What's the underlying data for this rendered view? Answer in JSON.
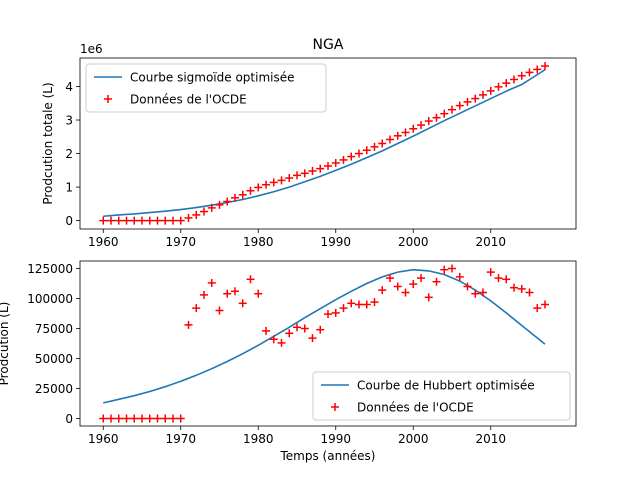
{
  "chart_data": [
    {
      "type": "line",
      "title": "NGA",
      "xlabel": "",
      "ylabel": "Prodcution totale (L)",
      "y_multiplier_label": "1e6",
      "xlim": [
        1957,
        2021
      ],
      "ylim": [
        -0.25,
        4.85
      ],
      "x_ticks": [
        1960,
        1970,
        1980,
        1990,
        2000,
        2010
      ],
      "y_ticks": [
        0,
        1,
        2,
        3,
        4
      ],
      "legend_position": "upper left",
      "legend": [
        {
          "label": "Courbe sigmoïde optimisée",
          "kind": "line"
        },
        {
          "label": "Données de l'OCDE",
          "kind": "marker"
        }
      ],
      "series": [
        {
          "name": "Courbe sigmoïde optimisée",
          "kind": "line",
          "color": "#1f77b4",
          "x": [
            1960,
            1962,
            1964,
            1966,
            1968,
            1970,
            1972,
            1974,
            1976,
            1978,
            1980,
            1982,
            1984,
            1986,
            1988,
            1990,
            1992,
            1994,
            1996,
            1998,
            2000,
            2002,
            2004,
            2006,
            2008,
            2010,
            2012,
            2014,
            2017
          ],
          "y": [
            0.13,
            0.17,
            0.2,
            0.24,
            0.28,
            0.33,
            0.39,
            0.46,
            0.54,
            0.63,
            0.74,
            0.86,
            1.0,
            1.16,
            1.32,
            1.5,
            1.68,
            1.88,
            2.08,
            2.3,
            2.52,
            2.75,
            2.98,
            3.2,
            3.42,
            3.64,
            3.86,
            4.06,
            4.5
          ]
        },
        {
          "name": "Données de l'OCDE",
          "kind": "marker",
          "color": "#ff0000",
          "x": [
            1960,
            1961,
            1962,
            1963,
            1964,
            1965,
            1966,
            1967,
            1968,
            1969,
            1970,
            1971,
            1972,
            1973,
            1974,
            1975,
            1976,
            1977,
            1978,
            1979,
            1980,
            1981,
            1982,
            1983,
            1984,
            1985,
            1986,
            1987,
            1988,
            1989,
            1990,
            1991,
            1992,
            1993,
            1994,
            1995,
            1996,
            1997,
            1998,
            1999,
            2000,
            2001,
            2002,
            2003,
            2004,
            2005,
            2006,
            2007,
            2008,
            2009,
            2010,
            2011,
            2012,
            2013,
            2014,
            2015,
            2016,
            2017
          ],
          "y": [
            0,
            0,
            0,
            0,
            0,
            0,
            0,
            0,
            0,
            0,
            0,
            0.08,
            0.17,
            0.27,
            0.38,
            0.47,
            0.57,
            0.68,
            0.77,
            0.89,
            0.99,
            1.07,
            1.14,
            1.2,
            1.27,
            1.35,
            1.41,
            1.48,
            1.55,
            1.63,
            1.72,
            1.81,
            1.91,
            2.0,
            2.1,
            2.2,
            2.3,
            2.42,
            2.53,
            2.63,
            2.74,
            2.85,
            2.97,
            3.07,
            3.19,
            3.31,
            3.43,
            3.54,
            3.64,
            3.75,
            3.87,
            3.99,
            4.1,
            4.21,
            4.32,
            4.42,
            4.51,
            4.61
          ]
        }
      ]
    },
    {
      "type": "line",
      "title": "",
      "xlabel": "Temps (années)",
      "ylabel": "Prodcution (L)",
      "xlim": [
        1957,
        2021
      ],
      "ylim": [
        -6250,
        131250
      ],
      "x_ticks": [
        1960,
        1970,
        1980,
        1990,
        2000,
        2010
      ],
      "y_ticks": [
        0,
        25000,
        50000,
        75000,
        100000,
        125000
      ],
      "legend_position": "lower right",
      "legend": [
        {
          "label": "Courbe de Hubbert optimisée",
          "kind": "line"
        },
        {
          "label": "Données de l'OCDE",
          "kind": "marker"
        }
      ],
      "series": [
        {
          "name": "Courbe de Hubbert optimisée",
          "kind": "line",
          "color": "#1f77b4",
          "x": [
            1960,
            1962,
            1964,
            1966,
            1968,
            1970,
            1972,
            1974,
            1976,
            1978,
            1980,
            1982,
            1984,
            1986,
            1988,
            1990,
            1992,
            1994,
            1996,
            1998,
            2000,
            2002,
            2004,
            2006,
            2008,
            2010,
            2012,
            2014,
            2017
          ],
          "y": [
            13000,
            16000,
            19000,
            22500,
            26500,
            31000,
            36000,
            41500,
            47500,
            54000,
            61000,
            68500,
            76000,
            84000,
            91500,
            99000,
            106000,
            112500,
            118000,
            122000,
            124000,
            123000,
            120000,
            114500,
            107000,
            98000,
            88000,
            77500,
            62000
          ]
        },
        {
          "name": "Données de l'OCDE",
          "kind": "marker",
          "color": "#ff0000",
          "x": [
            1960,
            1961,
            1962,
            1963,
            1964,
            1965,
            1966,
            1967,
            1968,
            1969,
            1970,
            1971,
            1972,
            1973,
            1974,
            1975,
            1976,
            1977,
            1978,
            1979,
            1980,
            1981,
            1982,
            1983,
            1984,
            1985,
            1986,
            1987,
            1988,
            1989,
            1990,
            1991,
            1992,
            1993,
            1994,
            1995,
            1996,
            1997,
            1998,
            1999,
            2000,
            2001,
            2002,
            2003,
            2004,
            2005,
            2006,
            2007,
            2008,
            2009,
            2010,
            2011,
            2012,
            2013,
            2014,
            2015,
            2016,
            2017
          ],
          "y": [
            0,
            0,
            0,
            0,
            0,
            0,
            0,
            0,
            0,
            0,
            0,
            78000,
            92000,
            103000,
            113000,
            90000,
            104000,
            106000,
            96000,
            116000,
            104000,
            73000,
            66000,
            63000,
            71000,
            76000,
            75000,
            67000,
            74000,
            87000,
            88000,
            92000,
            96000,
            95000,
            95000,
            97000,
            107000,
            117000,
            110000,
            105000,
            112000,
            117000,
            101000,
            114000,
            124000,
            125000,
            118000,
            110000,
            104000,
            105000,
            122000,
            117000,
            116000,
            109000,
            108000,
            105000,
            92000,
            95000
          ]
        }
      ]
    }
  ]
}
